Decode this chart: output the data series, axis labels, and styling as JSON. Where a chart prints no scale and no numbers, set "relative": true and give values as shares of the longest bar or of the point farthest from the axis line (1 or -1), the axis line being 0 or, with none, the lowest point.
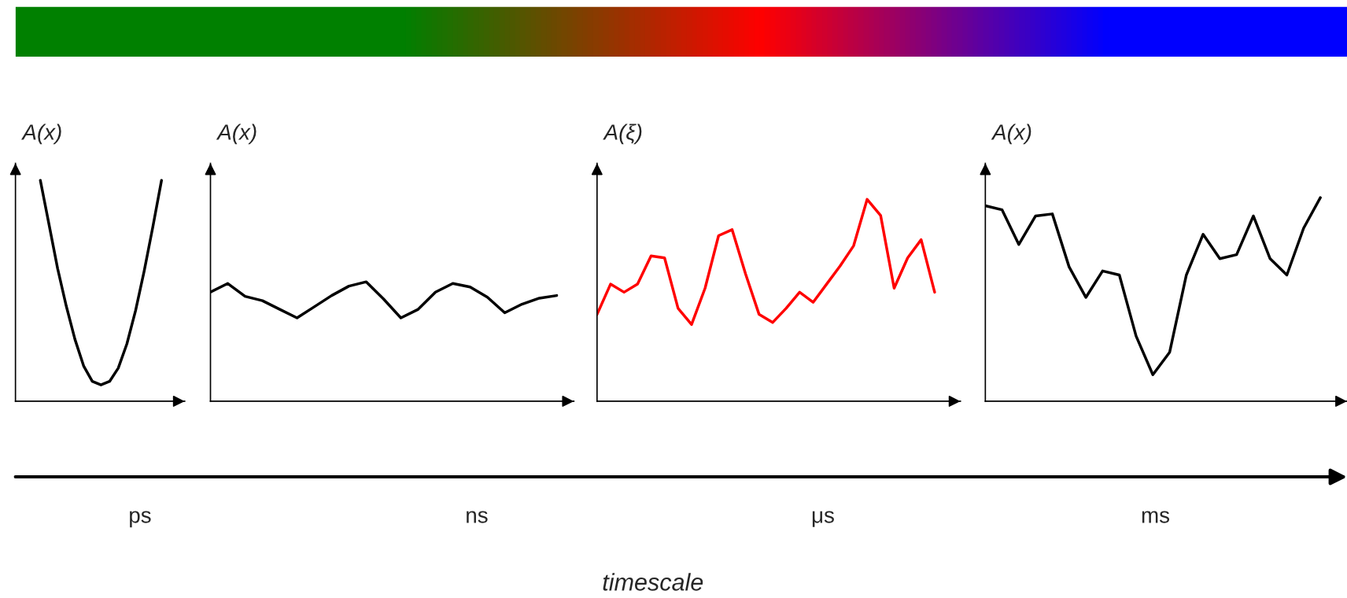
{
  "chart_data": [
    {
      "type": "line",
      "relative": true,
      "ylabel": "A(x)",
      "xlabel": "ps",
      "annotations": [
        "timescale"
      ],
      "categories": [
        null,
        null,
        null,
        null,
        null,
        null,
        null,
        null,
        null,
        null,
        null,
        null,
        null,
        null,
        null
      ],
      "series": [
        {
          "color": "#000000",
          "values": [
            1,
            0.8,
            0.6,
            0.43,
            0.28,
            0.16,
            0.09,
            0.074,
            0.09,
            0.15,
            0.26,
            0.41,
            0.59,
            0.79,
            1
          ]
        }
      ]
    },
    {
      "type": "line",
      "relative": true,
      "ylabel": "A(x)",
      "xlabel": "ns",
      "categories": [
        null,
        null,
        null,
        null,
        null,
        null,
        null,
        null,
        null,
        null,
        null,
        null,
        null,
        null,
        null,
        null,
        null,
        null,
        null,
        null,
        null
      ],
      "series": [
        {
          "color": "#000000",
          "values": [
            0.914,
            0.986,
            0.878,
            0.842,
            0.77,
            0.698,
            0.791,
            0.885,
            0.964,
            1,
            0.856,
            0.698,
            0.77,
            0.914,
            0.986,
            0.957,
            0.871,
            0.741,
            0.813,
            0.863,
            0.885
          ]
        }
      ]
    },
    {
      "type": "line",
      "relative": true,
      "ylabel": "A(ξ)",
      "xlabel": "μs",
      "categories": [
        null,
        null,
        null,
        null,
        null,
        null,
        null,
        null,
        null,
        null,
        null,
        null,
        null,
        null,
        null,
        null,
        null,
        null,
        null,
        null,
        null,
        null,
        null,
        null,
        null,
        null
      ],
      "series": [
        {
          "color": "#ff0000",
          "values": [
            0.43,
            0.58,
            0.54,
            0.58,
            0.72,
            0.71,
            0.46,
            0.38,
            0.56,
            0.82,
            0.85,
            0.63,
            0.43,
            0.39,
            0.46,
            0.54,
            0.49,
            0.58,
            0.67,
            0.77,
            1,
            0.92,
            0.56,
            0.71,
            0.8,
            0.54
          ]
        }
      ]
    },
    {
      "type": "line",
      "relative": true,
      "ylabel": "A(x)",
      "xlabel": "ms",
      "categories": [
        null,
        null,
        null,
        null,
        null,
        null,
        null,
        null,
        null,
        null,
        null,
        null,
        null,
        null,
        null,
        null,
        null,
        null,
        null,
        null,
        null
      ],
      "series": [
        {
          "color": "#000000",
          "values": [
            0.96,
            0.94,
            0.77,
            0.91,
            0.92,
            0.66,
            0.51,
            0.64,
            0.62,
            0.32,
            0.13,
            0.24,
            0.62,
            0.82,
            0.7,
            0.72,
            0.91,
            0.7,
            0.62,
            0.85,
            1
          ]
        }
      ]
    }
  ]
}
